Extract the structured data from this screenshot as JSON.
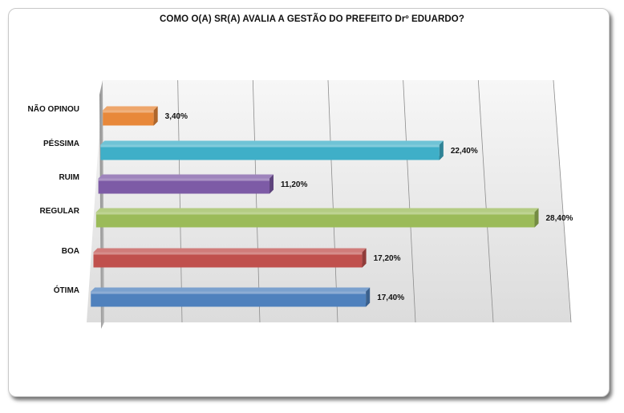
{
  "chart_data": {
    "type": "bar",
    "orientation": "horizontal",
    "three_d": true,
    "title": "COMO O(A) SR(A) AVALIA A GESTÃO DO PREFEITO Drº EDUARDO?",
    "categories": [
      "NÃO OPINOU",
      "PÉSSIMA",
      "RUIM",
      "REGULAR",
      "BOA",
      "ÓTIMA"
    ],
    "values": [
      3.4,
      22.4,
      11.2,
      28.4,
      17.2,
      17.4
    ],
    "value_labels": [
      "3,40%",
      "22,40%",
      "11,20%",
      "28,40%",
      "17,20%",
      "17,40%"
    ],
    "colors": [
      "#E8883A",
      "#3FAFC8",
      "#7D5BA6",
      "#9BBB59",
      "#C0504D",
      "#4F81BD"
    ],
    "xlim": [
      0,
      30
    ],
    "xlabel": "",
    "ylabel": "",
    "grid": true,
    "legend": "none"
  }
}
